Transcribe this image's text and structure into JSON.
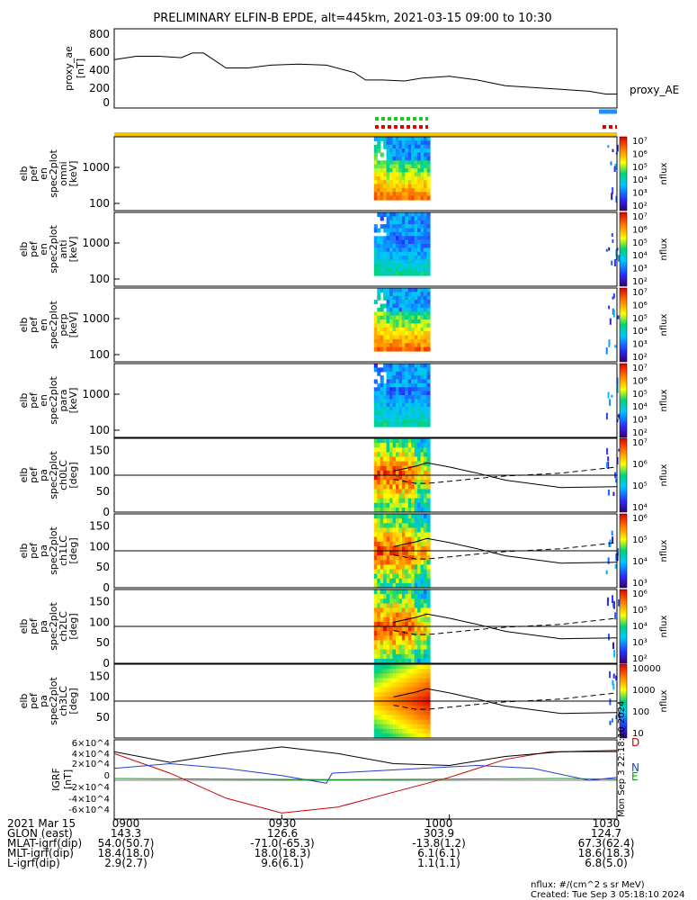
{
  "title": "PRELIMINARY ELFIN-B EPDE, alt=445km, 2021-03-15 09:00 to 10:30",
  "proxy_ae": {
    "ylabel_lines": [
      "proxy_ae",
      "[nT]"
    ],
    "legend": "proxy_AE",
    "yticks": [
      "800",
      "600",
      "400",
      "200",
      "0"
    ]
  },
  "spec_panels": [
    {
      "ylabel_lines": [
        "elb",
        "pef",
        "en",
        "spec2plot",
        "omni",
        "[keV]"
      ],
      "yticks": [
        "1000",
        "100"
      ],
      "cb_label": "nflux"
    },
    {
      "ylabel_lines": [
        "elb",
        "pef",
        "en",
        "spec2plot",
        "anti",
        "[keV]"
      ],
      "yticks": [
        "1000",
        "100"
      ],
      "cb_label": "nflux"
    },
    {
      "ylabel_lines": [
        "elb",
        "pef",
        "en",
        "spec2plot",
        "perp",
        "[keV]"
      ],
      "yticks": [
        "1000",
        "100"
      ],
      "cb_label": "nflux"
    },
    {
      "ylabel_lines": [
        "elb",
        "pef",
        "en",
        "spec2plot",
        "para",
        "[keV]"
      ],
      "yticks": [
        "1000",
        "100"
      ],
      "cb_label": "nflux"
    },
    {
      "ylabel_lines": [
        "elb",
        "pef",
        "pa",
        "spec2plot",
        "ch0LC",
        "[deg]"
      ],
      "yticks": [
        "150",
        "100",
        "50",
        "0"
      ],
      "cb_label": "nflux"
    },
    {
      "ylabel_lines": [
        "elb",
        "pef",
        "pa",
        "spec2plot",
        "ch1LC",
        "[deg]"
      ],
      "yticks": [
        "150",
        "100",
        "50",
        "0"
      ],
      "cb_label": "nflux"
    },
    {
      "ylabel_lines": [
        "elb",
        "pef",
        "pa",
        "spec2plot",
        "ch2LC",
        "[deg]"
      ],
      "yticks": [
        "150",
        "100",
        "50",
        "0"
      ],
      "cb_label": "nflux"
    },
    {
      "ylabel_lines": [
        "elb",
        "pef",
        "pa",
        "spec2plot",
        "ch3LC",
        "[deg]"
      ],
      "yticks": [
        "150",
        "100",
        "50"
      ],
      "cb_label": "nflux"
    }
  ],
  "colorbars": {
    "energy": [
      "10^7",
      "10^6",
      "10^5",
      "10^4",
      "10^3",
      "10^2"
    ],
    "pa0": [
      "10^7",
      "10^6",
      "10^5",
      "10^4"
    ],
    "pa1": [
      "10^6",
      "10^5",
      "10^4",
      "10^3"
    ],
    "pa2": [
      "10^6",
      "10^5",
      "10^4",
      "10^3",
      "10^2"
    ],
    "pa3": [
      "10000",
      "1000",
      "100",
      "10"
    ]
  },
  "igrf": {
    "ylabel_lines": [
      "IGRF",
      "[nT]"
    ],
    "yticks": [
      "6×10^4",
      "4×10^4",
      "2×10^4",
      "0",
      "-2×10^4",
      "-4×10^4",
      "-6×10^4"
    ],
    "legend": [
      {
        "label": "D",
        "color": "#cc0000"
      },
      {
        "label": "N",
        "color": "#1f3fcf"
      },
      {
        "label": "E",
        "color": "#0a9a0a"
      }
    ],
    "vertical_text": "Mon Sep  3 22:18:10 2024"
  },
  "footer": {
    "rows": [
      {
        "label": "2021 Mar 15",
        "values": [
          "0900",
          "0930",
          "1000",
          "1030"
        ]
      },
      {
        "label": "GLON (east)",
        "values": [
          "143.3",
          "126.6",
          "303.9",
          "124.7"
        ]
      },
      {
        "label": "MLAT-igrf(dip)",
        "values": [
          "54.0(50.7)",
          "-71.0(-65.3)",
          "-13.8(1.2)",
          "67.3(62.4)"
        ]
      },
      {
        "label": "MLT-igrf(dip)",
        "values": [
          "18.4(18.0)",
          "18.0(18.3)",
          "6.1(6.1)",
          "18.6(18.3)"
        ]
      },
      {
        "label": "L-igrf(dip)",
        "values": [
          "2.9(2.7)",
          "9.6(6.1)",
          "1.1(1.1)",
          "6.8(5.0)"
        ]
      }
    ],
    "units_note": "nflux: #/(cm^2 s sr MeV)",
    "created": "Created: Tue Sep  3 05:18:10 2024"
  },
  "chart_data": {
    "type": "heatmap",
    "x_range": [
      "09:00",
      "10:30"
    ],
    "x_ticks": [
      "0900",
      "0930",
      "1000",
      "1030"
    ],
    "proxy_ae_series": {
      "x_min": [
        0,
        4,
        8,
        12,
        14,
        16,
        20,
        24,
        28,
        33,
        38,
        43,
        45,
        48,
        52,
        55,
        60,
        65,
        70,
        75,
        80,
        85,
        88,
        90
      ],
      "values": [
        520,
        555,
        555,
        540,
        590,
        590,
        430,
        430,
        460,
        470,
        460,
        380,
        300,
        300,
        290,
        320,
        340,
        300,
        240,
        220,
        200,
        180,
        150,
        150
      ],
      "ylim": [
        0,
        850
      ]
    },
    "science_zone_minutes": [
      46.5,
      56.5
    ],
    "science_zone_minutes_2": [
      88,
      90
    ],
    "energy_ylim_keV": [
      60,
      6000
    ],
    "pa_ylim_deg": [
      0,
      180
    ],
    "pa_reference_deg": 90,
    "igrf_series": [
      {
        "name": "D",
        "x_min": [
          0,
          10,
          20,
          30,
          40,
          50,
          60,
          70,
          78,
          84,
          90
        ],
        "values": [
          45000,
          12000,
          -30000,
          -55000,
          -45000,
          -20000,
          5000,
          35000,
          48000,
          48000,
          48000
        ]
      },
      {
        "name": "N",
        "x_min": [
          0,
          10,
          20,
          30,
          38,
          39,
          45,
          55,
          65,
          75,
          85,
          90
        ],
        "values": [
          20000,
          28000,
          20000,
          8000,
          -5000,
          12000,
          15000,
          20000,
          25000,
          20000,
          0,
          5000
        ]
      },
      {
        "name": "E",
        "x_min": [
          0,
          20,
          40,
          60,
          80,
          90
        ],
        "values": [
          3000,
          2000,
          1000,
          2000,
          3000,
          2000
        ]
      },
      {
        "name": "total",
        "x_min": [
          0,
          10,
          20,
          30,
          40,
          50,
          60,
          70,
          80,
          90
        ],
        "values": [
          48000,
          30000,
          45000,
          56000,
          45000,
          28000,
          25000,
          40000,
          48000,
          50000
        ]
      }
    ],
    "igrf_ylim": [
      -65000,
      68000
    ]
  }
}
